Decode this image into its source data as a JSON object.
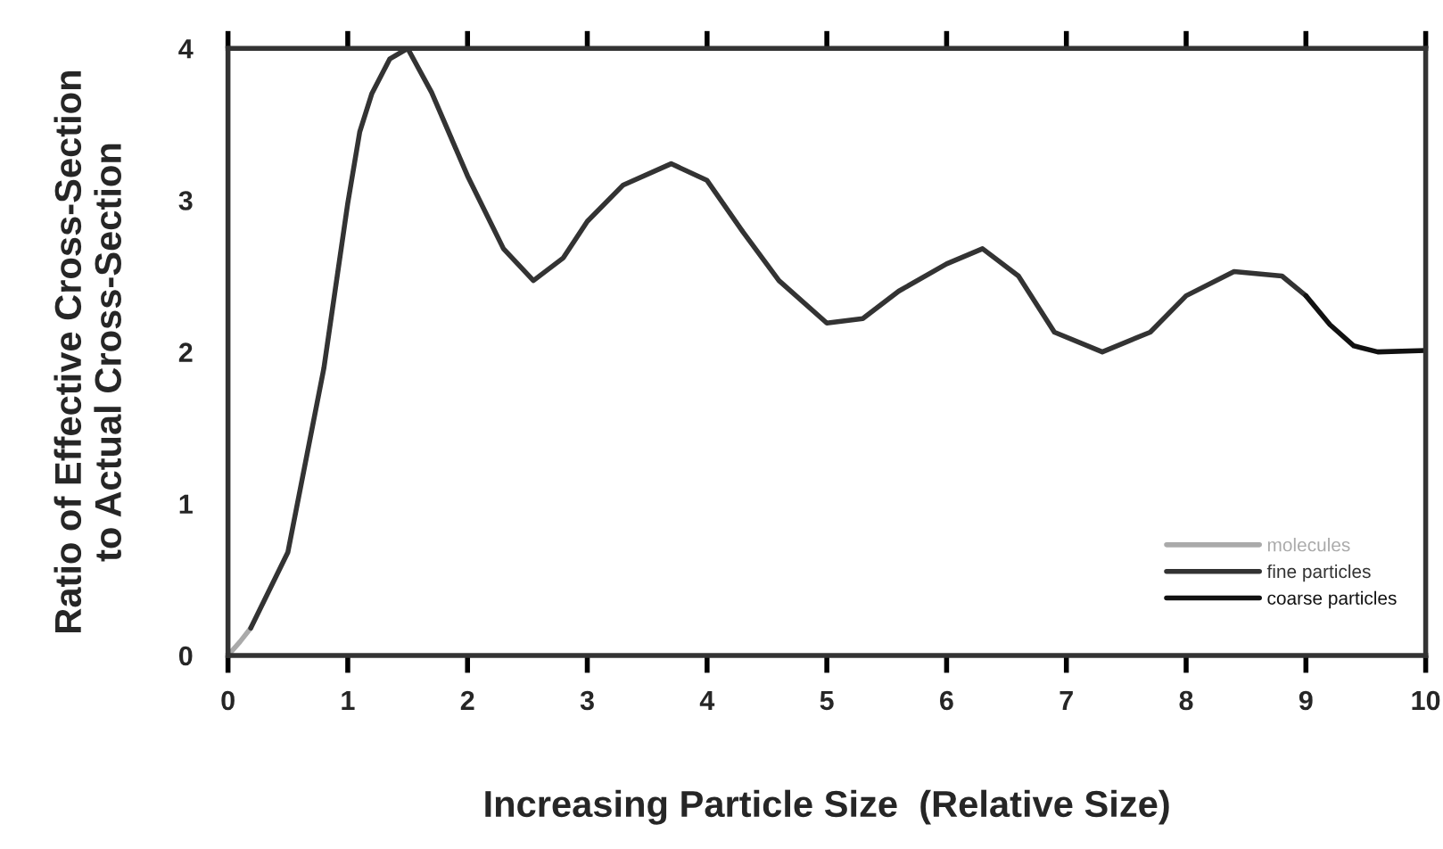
{
  "chart_data": {
    "type": "line",
    "xlabel": "Increasing Particle Size  (Relative Size)",
    "ylabel": "Ratio of Effective Cross-Section\nto Actual Cross-Section",
    "xlim": [
      0,
      10
    ],
    "ylim": [
      0,
      4
    ],
    "xticks": [
      0,
      1,
      2,
      3,
      4,
      5,
      6,
      7,
      8,
      9,
      10
    ],
    "yticks": [
      0,
      1,
      2,
      3,
      4
    ],
    "grid": false,
    "legend": "bottom right",
    "line_style": "solid",
    "marker": "none",
    "series": [
      {
        "name": "molecules",
        "color": "#aaaaaa",
        "x": [
          0,
          0.1,
          0.19
        ],
        "values": [
          0,
          0.09,
          0.18
        ]
      },
      {
        "name": "fine particles",
        "color": "#333333",
        "x": [
          0.19,
          0.5,
          0.8,
          1.0,
          1.1,
          1.2,
          1.35,
          1.5,
          1.7,
          2.0,
          2.3,
          2.55,
          2.8,
          3.0,
          3.3,
          3.7,
          4.0,
          4.3,
          4.6,
          5.0,
          5.3,
          5.6,
          6.0,
          6.3,
          6.6,
          6.9,
          7.3,
          7.7,
          8.0,
          8.4,
          8.8,
          9.0
        ],
        "values": [
          0.18,
          0.68,
          1.89,
          2.98,
          3.45,
          3.7,
          3.93,
          4.0,
          3.71,
          3.16,
          2.68,
          2.47,
          2.62,
          2.86,
          3.1,
          3.24,
          3.13,
          2.79,
          2.47,
          2.19,
          2.22,
          2.4,
          2.58,
          2.68,
          2.5,
          2.13,
          2.0,
          2.13,
          2.37,
          2.53,
          2.5,
          2.37
        ]
      },
      {
        "name": "coarse particles",
        "color": "#111111",
        "x": [
          9.0,
          9.2,
          9.4,
          9.6,
          10
        ],
        "values": [
          2.37,
          2.18,
          2.04,
          2.0,
          2.01
        ]
      }
    ]
  }
}
